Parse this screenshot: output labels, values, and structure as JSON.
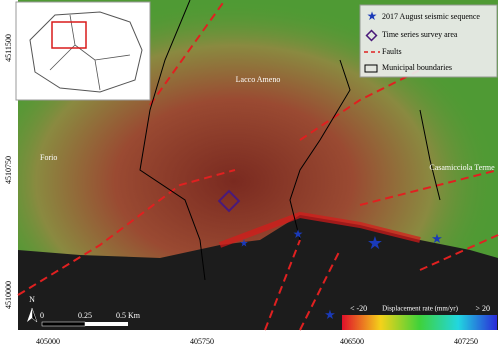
{
  "map": {
    "axes": {
      "x_labels": [
        "405000",
        "405750",
        "406500",
        "407250"
      ],
      "y_labels": [
        "4511500",
        "4510750",
        "4510000"
      ]
    },
    "places": [
      "Lacco Ameno",
      "Forio",
      "Casamicciola Terme"
    ],
    "legend": [
      "2017 August seismic sequence",
      "Time series survey area",
      "Faults",
      "Municipal boundaries"
    ],
    "scale_bar": [
      "0",
      "0.25",
      "0.5 Km"
    ],
    "north": "N",
    "colorbar": {
      "min_label": "< -20",
      "title": "Displacement rate (mm/yr)",
      "max_label": "> 20"
    }
  }
}
